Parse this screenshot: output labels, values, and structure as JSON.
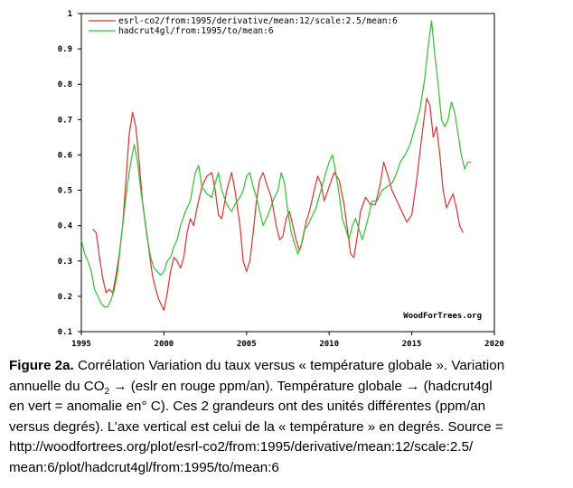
{
  "chart_data": {
    "type": "line",
    "xlim": [
      1995,
      2020
    ],
    "ylim": [
      0.1,
      1.0
    ],
    "x_ticks": [
      "1995",
      "2000",
      "2005",
      "2010",
      "2015",
      "2020"
    ],
    "y_ticks": [
      "0.1",
      "0.2",
      "0.3",
      "0.4",
      "0.5",
      "0.6",
      "0.7",
      "0.8",
      "0.9",
      "1"
    ],
    "grid": false,
    "legend": "top-left",
    "credit": "WoodForTrees.org",
    "series": [
      {
        "name": "esrl-co2/from:1995/derivative/mean:12/scale:2.5/mean:6",
        "color": "#e03030",
        "points": [
          [
            1995.7,
            0.39
          ],
          [
            1995.9,
            0.38
          ],
          [
            1996.1,
            0.31
          ],
          [
            1996.3,
            0.25
          ],
          [
            1996.5,
            0.21
          ],
          [
            1996.7,
            0.22
          ],
          [
            1996.9,
            0.21
          ],
          [
            1997.1,
            0.26
          ],
          [
            1997.3,
            0.32
          ],
          [
            1997.5,
            0.4
          ],
          [
            1997.7,
            0.53
          ],
          [
            1997.9,
            0.66
          ],
          [
            1998.1,
            0.72
          ],
          [
            1998.3,
            0.68
          ],
          [
            1998.5,
            0.58
          ],
          [
            1998.7,
            0.47
          ],
          [
            1998.9,
            0.4
          ],
          [
            1999.1,
            0.33
          ],
          [
            1999.3,
            0.26
          ],
          [
            1999.5,
            0.22
          ],
          [
            1999.7,
            0.19
          ],
          [
            1999.9,
            0.17
          ],
          [
            2000.0,
            0.16
          ],
          [
            2000.2,
            0.21
          ],
          [
            2000.4,
            0.27
          ],
          [
            2000.6,
            0.31
          ],
          [
            2000.8,
            0.3
          ],
          [
            2001.0,
            0.28
          ],
          [
            2001.2,
            0.31
          ],
          [
            2001.4,
            0.38
          ],
          [
            2001.6,
            0.42
          ],
          [
            2001.8,
            0.4
          ],
          [
            2002.0,
            0.45
          ],
          [
            2002.3,
            0.51
          ],
          [
            2002.6,
            0.54
          ],
          [
            2002.9,
            0.55
          ],
          [
            2003.1,
            0.5
          ],
          [
            2003.3,
            0.43
          ],
          [
            2003.5,
            0.42
          ],
          [
            2003.8,
            0.5
          ],
          [
            2004.1,
            0.55
          ],
          [
            2004.3,
            0.5
          ],
          [
            2004.6,
            0.4
          ],
          [
            2004.8,
            0.3
          ],
          [
            2005.0,
            0.27
          ],
          [
            2005.2,
            0.3
          ],
          [
            2005.4,
            0.38
          ],
          [
            2005.6,
            0.47
          ],
          [
            2005.8,
            0.53
          ],
          [
            2006.0,
            0.55
          ],
          [
            2006.2,
            0.52
          ],
          [
            2006.5,
            0.48
          ],
          [
            2006.8,
            0.4
          ],
          [
            2007.0,
            0.36
          ],
          [
            2007.2,
            0.37
          ],
          [
            2007.4,
            0.42
          ],
          [
            2007.6,
            0.44
          ],
          [
            2007.8,
            0.4
          ],
          [
            2008.0,
            0.36
          ],
          [
            2008.2,
            0.33
          ],
          [
            2008.4,
            0.36
          ],
          [
            2008.6,
            0.41
          ],
          [
            2008.8,
            0.44
          ],
          [
            2009.0,
            0.48
          ],
          [
            2009.3,
            0.54
          ],
          [
            2009.5,
            0.52
          ],
          [
            2009.7,
            0.47
          ],
          [
            2010.0,
            0.51
          ],
          [
            2010.3,
            0.55
          ],
          [
            2010.6,
            0.53
          ],
          [
            2010.9,
            0.46
          ],
          [
            2011.1,
            0.39
          ],
          [
            2011.3,
            0.32
          ],
          [
            2011.5,
            0.31
          ],
          [
            2011.7,
            0.37
          ],
          [
            2011.9,
            0.44
          ],
          [
            2012.2,
            0.48
          ],
          [
            2012.5,
            0.46
          ],
          [
            2012.8,
            0.46
          ],
          [
            2013.1,
            0.52
          ],
          [
            2013.3,
            0.58
          ],
          [
            2013.5,
            0.55
          ],
          [
            2013.8,
            0.5
          ],
          [
            2014.1,
            0.47
          ],
          [
            2014.4,
            0.44
          ],
          [
            2014.7,
            0.41
          ],
          [
            2015.0,
            0.43
          ],
          [
            2015.3,
            0.53
          ],
          [
            2015.6,
            0.65
          ],
          [
            2015.9,
            0.76
          ],
          [
            2016.1,
            0.74
          ],
          [
            2016.3,
            0.65
          ],
          [
            2016.5,
            0.68
          ],
          [
            2016.7,
            0.6
          ],
          [
            2016.9,
            0.5
          ],
          [
            2017.1,
            0.45
          ],
          [
            2017.3,
            0.47
          ],
          [
            2017.5,
            0.49
          ],
          [
            2017.7,
            0.45
          ],
          [
            2017.9,
            0.4
          ],
          [
            2018.1,
            0.38
          ]
        ]
      },
      {
        "name": "hadcrut4gl/from:1995/to/mean:6",
        "color": "#30c030",
        "points": [
          [
            1995.0,
            0.36
          ],
          [
            1995.2,
            0.32
          ],
          [
            1995.4,
            0.3
          ],
          [
            1995.6,
            0.27
          ],
          [
            1995.8,
            0.22
          ],
          [
            1996.0,
            0.2
          ],
          [
            1996.2,
            0.18
          ],
          [
            1996.4,
            0.17
          ],
          [
            1996.6,
            0.17
          ],
          [
            1996.8,
            0.19
          ],
          [
            1997.0,
            0.22
          ],
          [
            1997.2,
            0.27
          ],
          [
            1997.4,
            0.36
          ],
          [
            1997.6,
            0.44
          ],
          [
            1997.8,
            0.52
          ],
          [
            1998.0,
            0.58
          ],
          [
            1998.2,
            0.63
          ],
          [
            1998.4,
            0.58
          ],
          [
            1998.6,
            0.5
          ],
          [
            1998.8,
            0.43
          ],
          [
            1999.0,
            0.36
          ],
          [
            1999.2,
            0.31
          ],
          [
            1999.4,
            0.28
          ],
          [
            1999.6,
            0.27
          ],
          [
            1999.8,
            0.26
          ],
          [
            2000.0,
            0.27
          ],
          [
            2000.2,
            0.3
          ],
          [
            2000.4,
            0.31
          ],
          [
            2000.6,
            0.34
          ],
          [
            2000.8,
            0.36
          ],
          [
            2001.0,
            0.4
          ],
          [
            2001.3,
            0.44
          ],
          [
            2001.6,
            0.47
          ],
          [
            2001.9,
            0.55
          ],
          [
            2002.1,
            0.57
          ],
          [
            2002.3,
            0.51
          ],
          [
            2002.6,
            0.49
          ],
          [
            2002.9,
            0.48
          ],
          [
            2003.1,
            0.52
          ],
          [
            2003.3,
            0.55
          ],
          [
            2003.5,
            0.5
          ],
          [
            2003.8,
            0.46
          ],
          [
            2004.1,
            0.44
          ],
          [
            2004.3,
            0.46
          ],
          [
            2004.6,
            0.48
          ],
          [
            2004.8,
            0.5
          ],
          [
            2005.0,
            0.54
          ],
          [
            2005.2,
            0.55
          ],
          [
            2005.4,
            0.51
          ],
          [
            2005.6,
            0.48
          ],
          [
            2005.8,
            0.44
          ],
          [
            2006.0,
            0.4
          ],
          [
            2006.3,
            0.43
          ],
          [
            2006.6,
            0.47
          ],
          [
            2006.9,
            0.5
          ],
          [
            2007.1,
            0.55
          ],
          [
            2007.3,
            0.52
          ],
          [
            2007.5,
            0.44
          ],
          [
            2007.7,
            0.38
          ],
          [
            2007.9,
            0.35
          ],
          [
            2008.1,
            0.32
          ],
          [
            2008.3,
            0.34
          ],
          [
            2008.5,
            0.39
          ],
          [
            2008.7,
            0.4
          ],
          [
            2008.9,
            0.42
          ],
          [
            2009.2,
            0.45
          ],
          [
            2009.5,
            0.5
          ],
          [
            2009.8,
            0.55
          ],
          [
            2010.0,
            0.58
          ],
          [
            2010.2,
            0.6
          ],
          [
            2010.4,
            0.55
          ],
          [
            2010.6,
            0.49
          ],
          [
            2010.8,
            0.42
          ],
          [
            2011.0,
            0.39
          ],
          [
            2011.2,
            0.36
          ],
          [
            2011.4,
            0.4
          ],
          [
            2011.6,
            0.42
          ],
          [
            2011.8,
            0.39
          ],
          [
            2012.0,
            0.36
          ],
          [
            2012.3,
            0.41
          ],
          [
            2012.6,
            0.47
          ],
          [
            2012.9,
            0.47
          ],
          [
            2013.2,
            0.5
          ],
          [
            2013.5,
            0.51
          ],
          [
            2013.8,
            0.52
          ],
          [
            2014.1,
            0.55
          ],
          [
            2014.3,
            0.58
          ],
          [
            2014.6,
            0.6
          ],
          [
            2014.9,
            0.63
          ],
          [
            2015.2,
            0.68
          ],
          [
            2015.5,
            0.73
          ],
          [
            2015.8,
            0.82
          ],
          [
            2016.0,
            0.91
          ],
          [
            2016.2,
            0.98
          ],
          [
            2016.4,
            0.88
          ],
          [
            2016.6,
            0.8
          ],
          [
            2016.8,
            0.7
          ],
          [
            2017.0,
            0.68
          ],
          [
            2017.2,
            0.7
          ],
          [
            2017.4,
            0.75
          ],
          [
            2017.6,
            0.72
          ],
          [
            2017.8,
            0.66
          ],
          [
            2018.0,
            0.6
          ],
          [
            2018.2,
            0.56
          ],
          [
            2018.4,
            0.58
          ],
          [
            2018.6,
            0.58
          ]
        ]
      }
    ]
  },
  "caption": {
    "line1_bold": "Figure 2a.",
    "line1_rest": " Corrélation Variation du taux versus « température globale ». Variation",
    "line2_a": "annuelle du CO",
    "line2_sub": "2",
    "line2_b": " →  (eslr en rouge  ppm/an). Température globale →  (hadcrut4gl",
    "line3": "en vert = anomalie en° C). Ces 2 grandeurs ont des unités différentes (ppm/an",
    "line4": "versus degrés). L’axe vertical est celui de la « température » en degrés. Source =",
    "line5": "http://woodfortrees.org/plot/esrl-co2/from:1995/derivative/mean:12/scale:2.5/",
    "line6": "mean:6/plot/hadcrut4gl/from:1995/to/mean:6"
  }
}
